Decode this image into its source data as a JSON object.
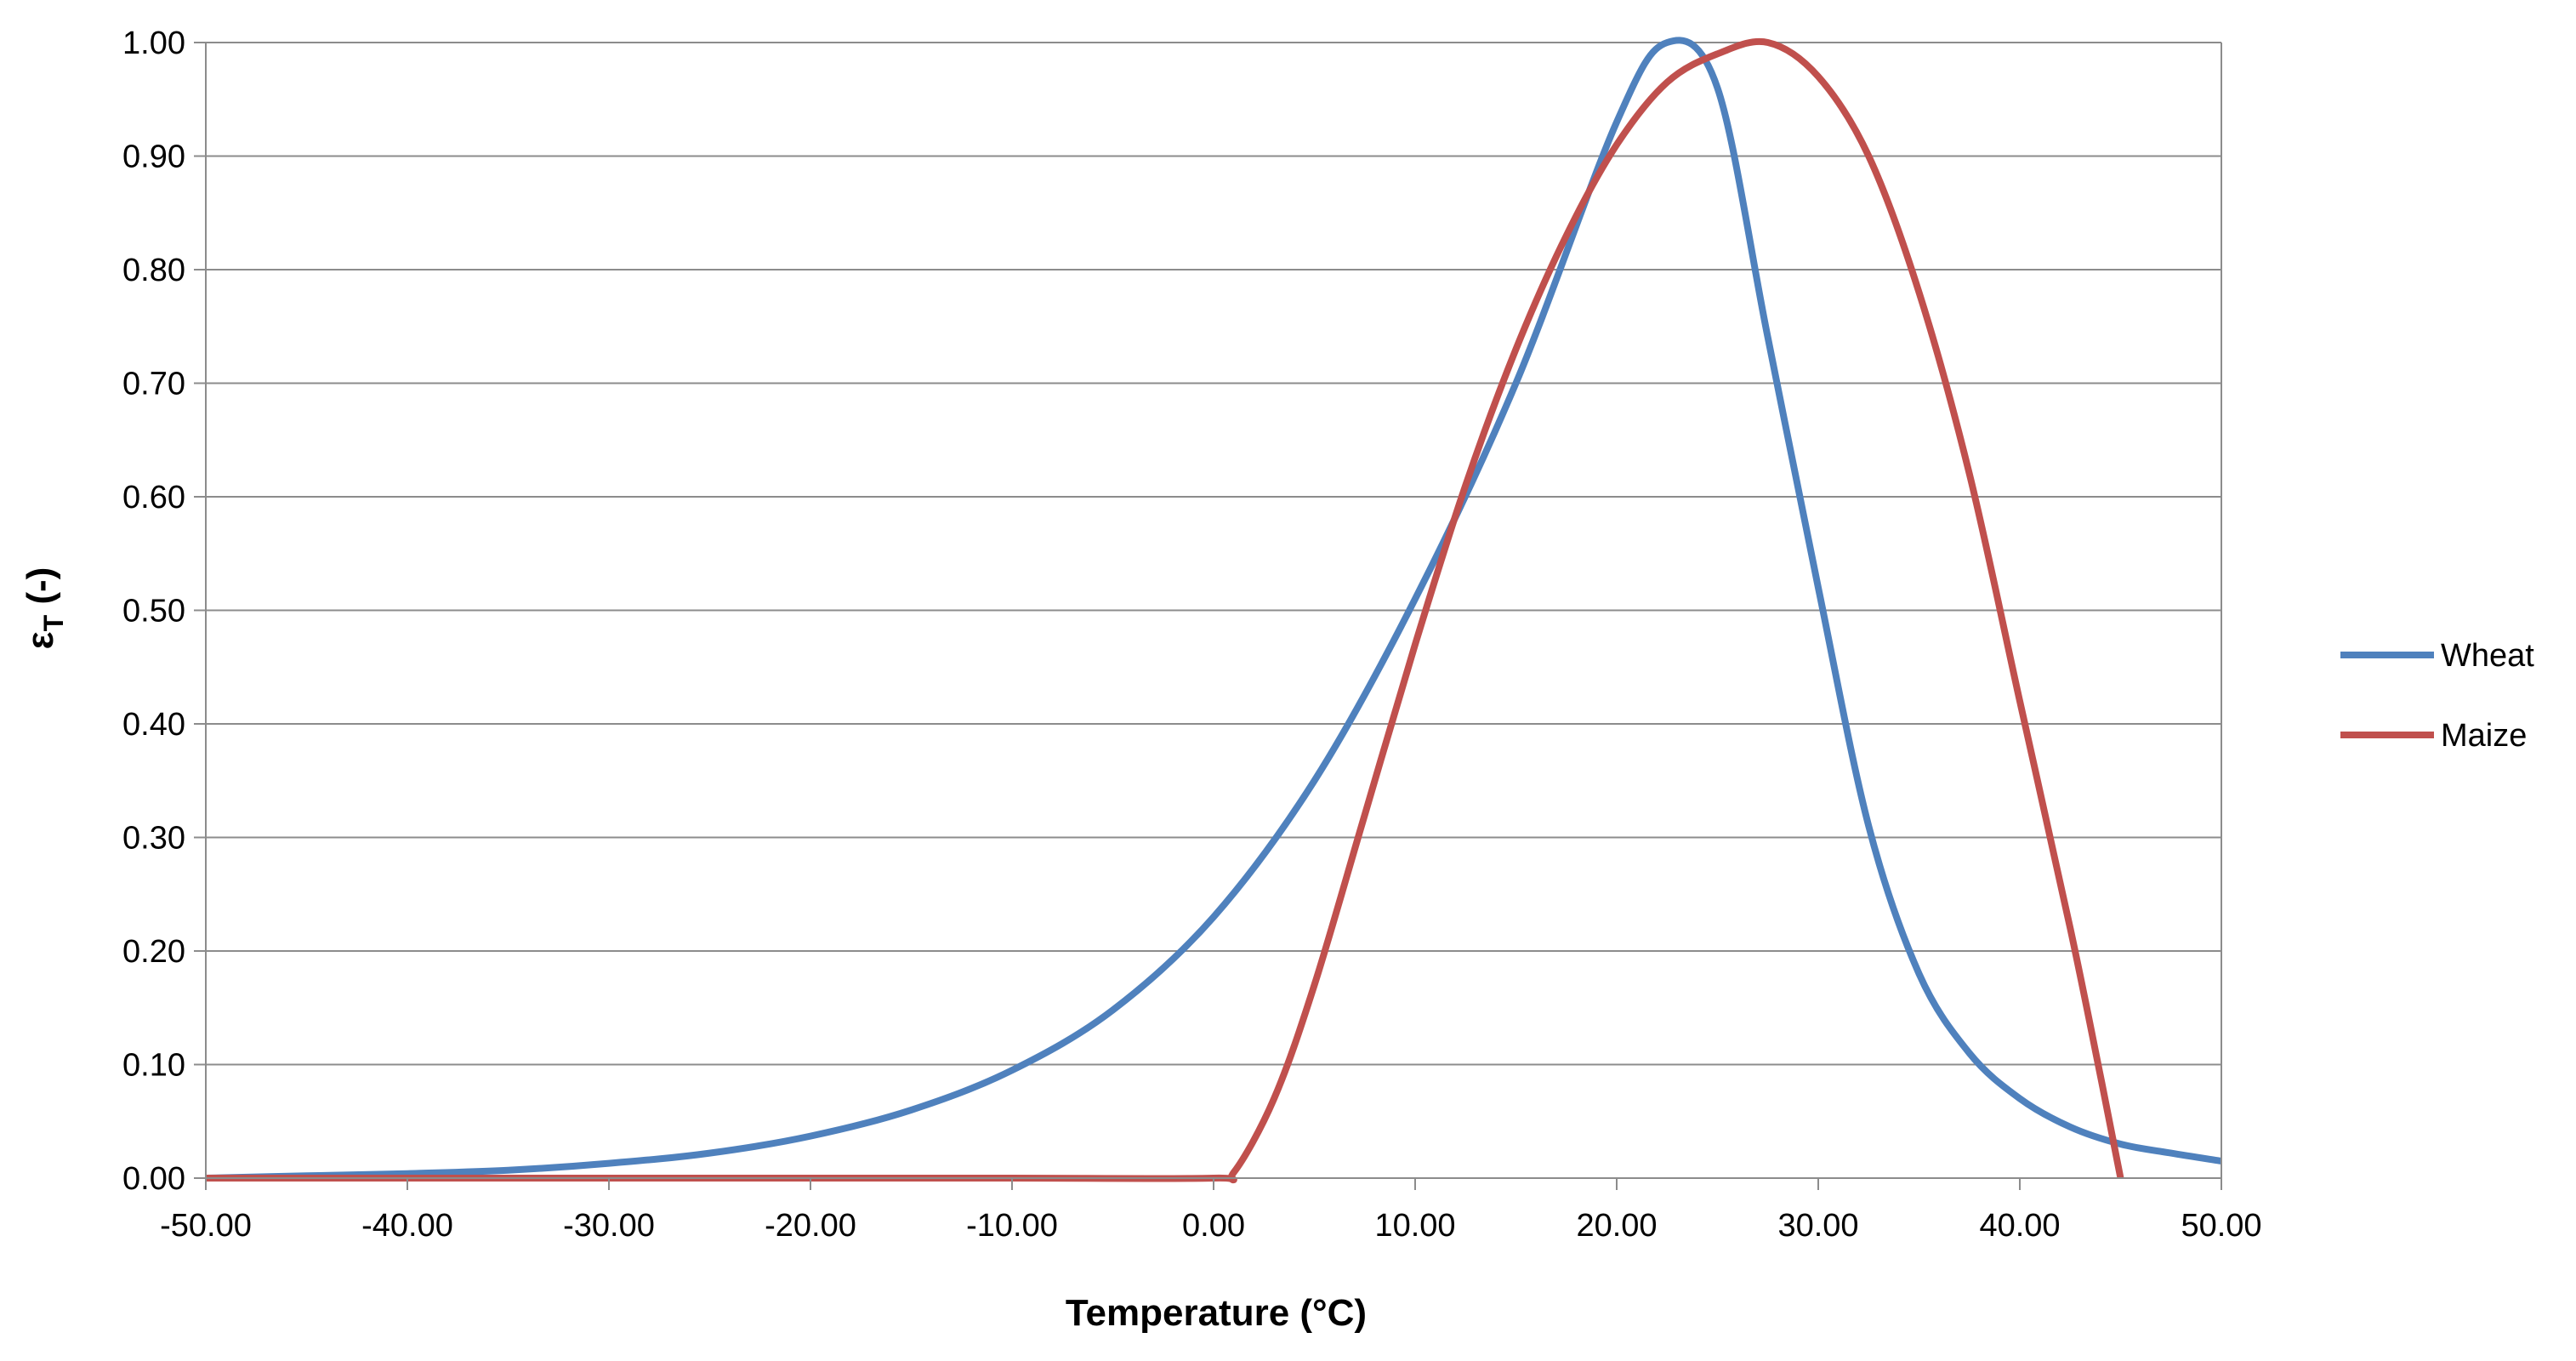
{
  "chart_data": {
    "type": "line",
    "title": "",
    "xlabel": "Temperature (°C)",
    "ylabel": {
      "main": "ε",
      "subscript": "T",
      "suffix": " (-)"
    },
    "xlim": [
      -50,
      50
    ],
    "ylim": [
      0,
      1
    ],
    "x_ticks": [
      "-50.00",
      "-40.00",
      "-30.00",
      "-20.00",
      "-10.00",
      "0.00",
      "10.00",
      "20.00",
      "30.00",
      "40.00",
      "50.00"
    ],
    "y_ticks": [
      "0.00",
      "0.10",
      "0.20",
      "0.30",
      "0.40",
      "0.50",
      "0.60",
      "0.70",
      "0.80",
      "0.90",
      "1.00"
    ],
    "grid": "horizontal",
    "legend_position": "right",
    "series": [
      {
        "name": "Wheat",
        "color": "#4F81BD",
        "x": [
          -50,
          -45,
          -40,
          -35,
          -30,
          -25,
          -20,
          -15,
          -10,
          -5,
          0,
          5,
          10,
          15,
          20,
          22.5,
          25,
          27.5,
          30,
          32.5,
          35,
          37.5,
          40,
          42.5,
          45,
          47.5,
          50
        ],
        "y": [
          0.0,
          0.002,
          0.004,
          0.007,
          0.013,
          0.022,
          0.037,
          0.06,
          0.095,
          0.148,
          0.23,
          0.35,
          0.51,
          0.7,
          0.93,
          1.0,
          0.96,
          0.74,
          0.52,
          0.31,
          0.18,
          0.11,
          0.07,
          0.045,
          0.03,
          0.022,
          0.015
        ]
      },
      {
        "name": "Maize",
        "color": "#C0504D",
        "x": [
          -50,
          -40,
          -30,
          -20,
          -10,
          0,
          1,
          3,
          5,
          7.5,
          10,
          12.5,
          15,
          17.5,
          20,
          22.5,
          25,
          27.5,
          30,
          32.5,
          35,
          37.5,
          40,
          42.5,
          44,
          45
        ],
        "y": [
          0.0,
          0.0,
          0.0,
          0.0,
          0.0,
          0.0,
          0.005,
          0.07,
          0.17,
          0.32,
          0.47,
          0.61,
          0.73,
          0.83,
          0.91,
          0.965,
          0.99,
          1.0,
          0.97,
          0.9,
          0.78,
          0.62,
          0.42,
          0.22,
          0.09,
          0.0
        ]
      }
    ]
  }
}
